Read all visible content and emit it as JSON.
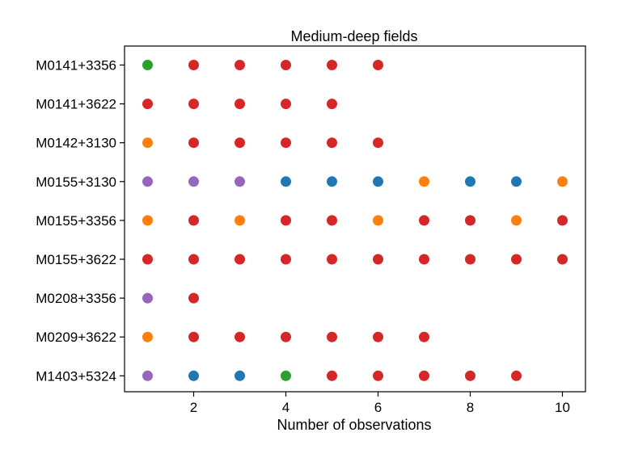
{
  "chart_data": {
    "type": "scatter",
    "title": "Medium-deep fields",
    "xlabel": "Number of observations",
    "ylabel": "",
    "xlim": [
      0.5,
      10.5
    ],
    "xticks": [
      2,
      4,
      6,
      8,
      10
    ],
    "categories": [
      "M0141+3356",
      "M0141+3622",
      "M0142+3130",
      "M0155+3130",
      "M0155+3356",
      "M0155+3622",
      "M0208+3356",
      "M0209+3622",
      "M1403+5324"
    ],
    "color_map": {
      "green": "#2ca02c",
      "red": "#d62728",
      "orange": "#ff7f0e",
      "purple": "#9467bd",
      "blue": "#1f77b4"
    },
    "rows": [
      {
        "field": "M0141+3356",
        "colors": [
          "green",
          "red",
          "red",
          "red",
          "red",
          "red"
        ]
      },
      {
        "field": "M0141+3622",
        "colors": [
          "red",
          "red",
          "red",
          "red",
          "red"
        ]
      },
      {
        "field": "M0142+3130",
        "colors": [
          "orange",
          "red",
          "red",
          "red",
          "red",
          "red"
        ]
      },
      {
        "field": "M0155+3130",
        "colors": [
          "purple",
          "purple",
          "purple",
          "blue",
          "blue",
          "blue",
          "orange",
          "blue",
          "blue",
          "orange"
        ]
      },
      {
        "field": "M0155+3356",
        "colors": [
          "orange",
          "red",
          "orange",
          "red",
          "red",
          "orange",
          "red",
          "red",
          "orange",
          "red"
        ]
      },
      {
        "field": "M0155+3622",
        "colors": [
          "red",
          "red",
          "red",
          "red",
          "red",
          "red",
          "red",
          "red",
          "red",
          "red"
        ]
      },
      {
        "field": "M0208+3356",
        "colors": [
          "purple",
          "red"
        ]
      },
      {
        "field": "M0209+3622",
        "colors": [
          "orange",
          "red",
          "red",
          "red",
          "red",
          "red",
          "red"
        ]
      },
      {
        "field": "M1403+5324",
        "colors": [
          "purple",
          "blue",
          "blue",
          "green",
          "red",
          "red",
          "red",
          "red",
          "red"
        ]
      }
    ]
  }
}
